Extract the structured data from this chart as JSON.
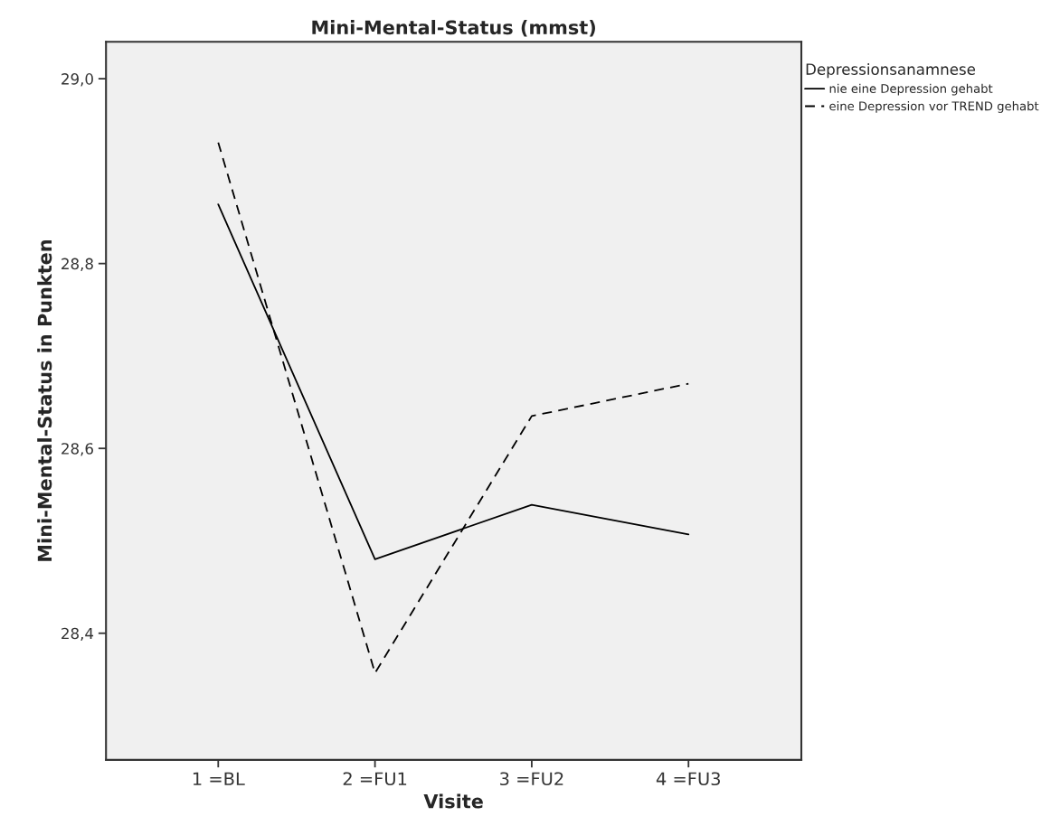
{
  "chart_data": {
    "type": "line",
    "title": "Mini-Mental-Status (mmst)",
    "xlabel": "Visite",
    "ylabel": "Mini-Mental-Status in Punkten",
    "legend_title": "Depressionsanamnese",
    "categories": [
      "1 =BL",
      "2 =FU1",
      "3 =FU2",
      "4 =FU3"
    ],
    "series": [
      {
        "name": "nie eine Depression gehabt",
        "color": "#000000",
        "line_style": "solid",
        "values": [
          28.864,
          28.48,
          28.539,
          28.507
        ]
      },
      {
        "name": "eine Depression vor TREND gehabt",
        "color": "#000000",
        "line_style": "dashed",
        "values": [
          28.931,
          28.357,
          28.635,
          28.67
        ]
      }
    ],
    "ylim": [
      28.263,
      29.04
    ],
    "yticks": [
      {
        "value": 28.4,
        "label": "28,4"
      },
      {
        "value": 28.6,
        "label": "28,6"
      },
      {
        "value": 28.8,
        "label": "28,8"
      },
      {
        "value": 29.0,
        "label": "29,0"
      }
    ],
    "grid": false,
    "legend": "top right",
    "marker": "none"
  }
}
